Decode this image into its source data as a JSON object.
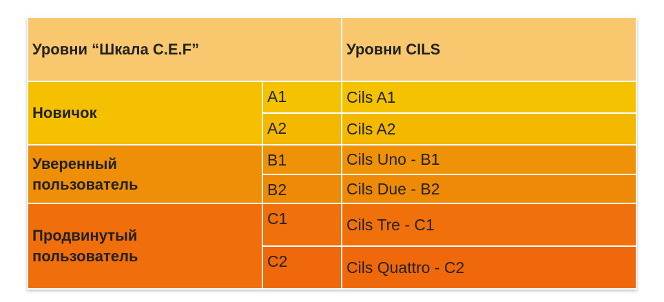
{
  "header": {
    "cef_title": "Уровни “Шкала C.E.F”",
    "cils_title": "Уровни CILS"
  },
  "groups": [
    {
      "level": "Новичок",
      "rows": [
        {
          "code": "A1",
          "cils": "Cils A1"
        },
        {
          "code": "A2",
          "cils": "Cils A2"
        }
      ]
    },
    {
      "level_line1": "Уверенный",
      "level_line2": "пользователь",
      "rows": [
        {
          "code": "B1",
          "cils": "Cils Uno - B1"
        },
        {
          "code": "B2",
          "cils": "Cils Due - B2"
        }
      ]
    },
    {
      "level_line1": "Продвинутый",
      "level_line2": "пользователь",
      "rows": [
        {
          "code": "C1",
          "cils": "Cils Tre - C1"
        },
        {
          "code": "C2",
          "cils": "Cils Quattro - C2"
        }
      ]
    }
  ],
  "colors": {
    "header": "#f8c76e",
    "novice": "#f5c200",
    "confident": "#ef9208",
    "advanced": "#f0700c"
  }
}
